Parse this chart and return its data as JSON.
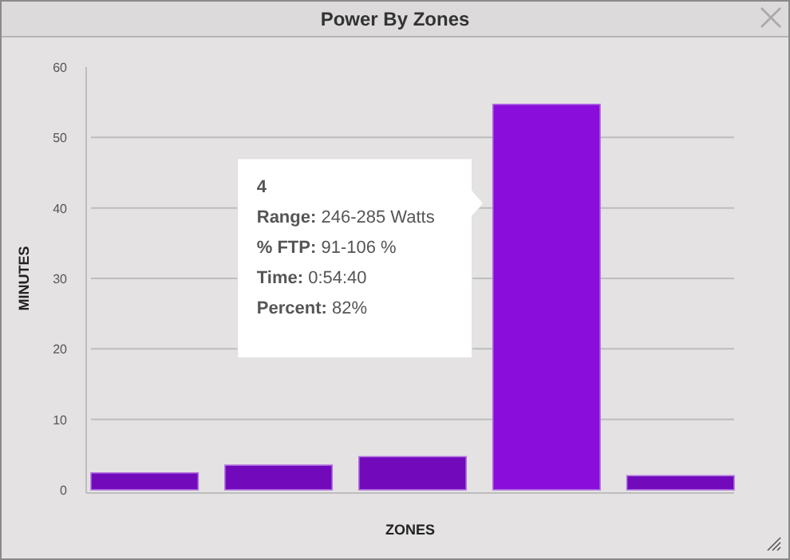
{
  "chart_data": {
    "type": "bar",
    "title": "Power By Zones",
    "xlabel": "ZONES",
    "ylabel": "MINUTES",
    "categories": [
      null,
      null,
      null,
      null,
      null
    ],
    "values": [
      2.4,
      3.5,
      4.7,
      54.7,
      2.0
    ],
    "colors": [
      "#7209bb",
      "#7209bb",
      "#7209bb",
      "#8a0ddb",
      "#7209bb"
    ],
    "ylim": [
      0,
      60
    ],
    "yticks": [
      0,
      10,
      20,
      30,
      40,
      50,
      60
    ],
    "grid": "y",
    "annotations": [
      "4",
      "Range: 246-285 Watts",
      "% FTP: 91-106 %",
      "Time: 0:54:40",
      "Percent: 82%"
    ]
  }
}
